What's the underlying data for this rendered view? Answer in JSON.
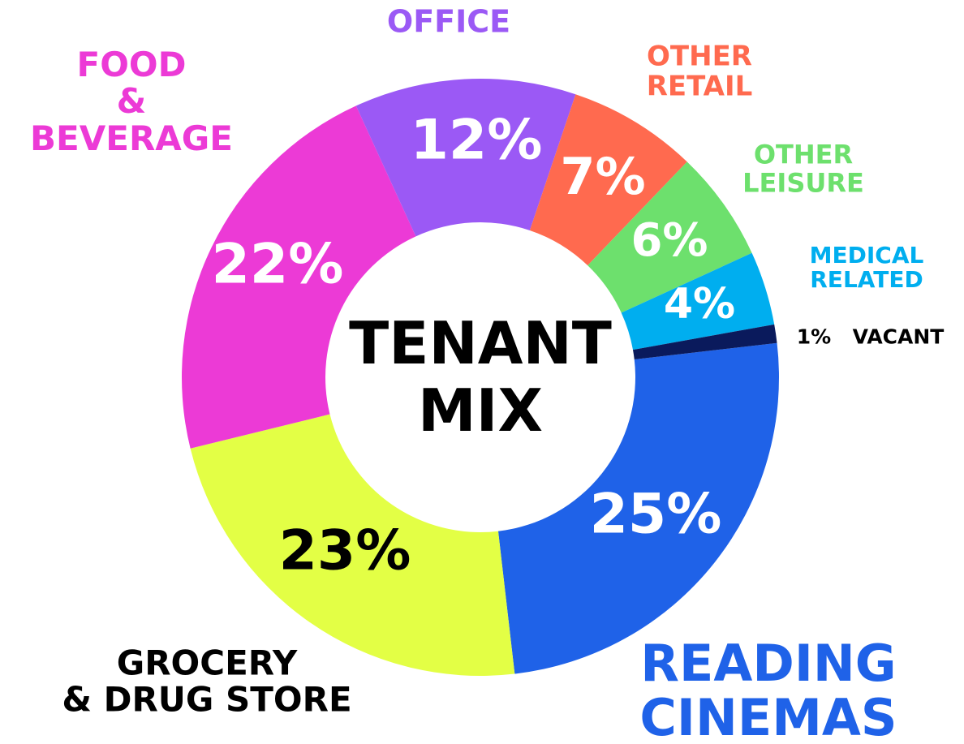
{
  "chart_data": {
    "type": "donut",
    "title": "TENANT MIX",
    "categories": [
      "READING\nCINEMAS",
      "GROCERY\n& DRUG STORE",
      "FOOD\n&\nBEVERAGE",
      "OFFICE",
      "OTHER\nRETAIL",
      "OTHER\nLEISURE",
      "MEDICAL\nRELATED",
      "VACANT"
    ],
    "values": [
      25,
      23,
      22,
      12,
      7,
      6,
      4,
      1
    ],
    "value_labels": [
      "25%",
      "23%",
      "22%",
      "12%",
      "7%",
      "6%",
      "4%",
      "1%"
    ],
    "colors": [
      "#1f62e8",
      "#e3ff45",
      "#ec3ad6",
      "#9b59f5",
      "#ff6a4f",
      "#6de06d",
      "#00aeef",
      "#0a1a5c"
    ]
  }
}
